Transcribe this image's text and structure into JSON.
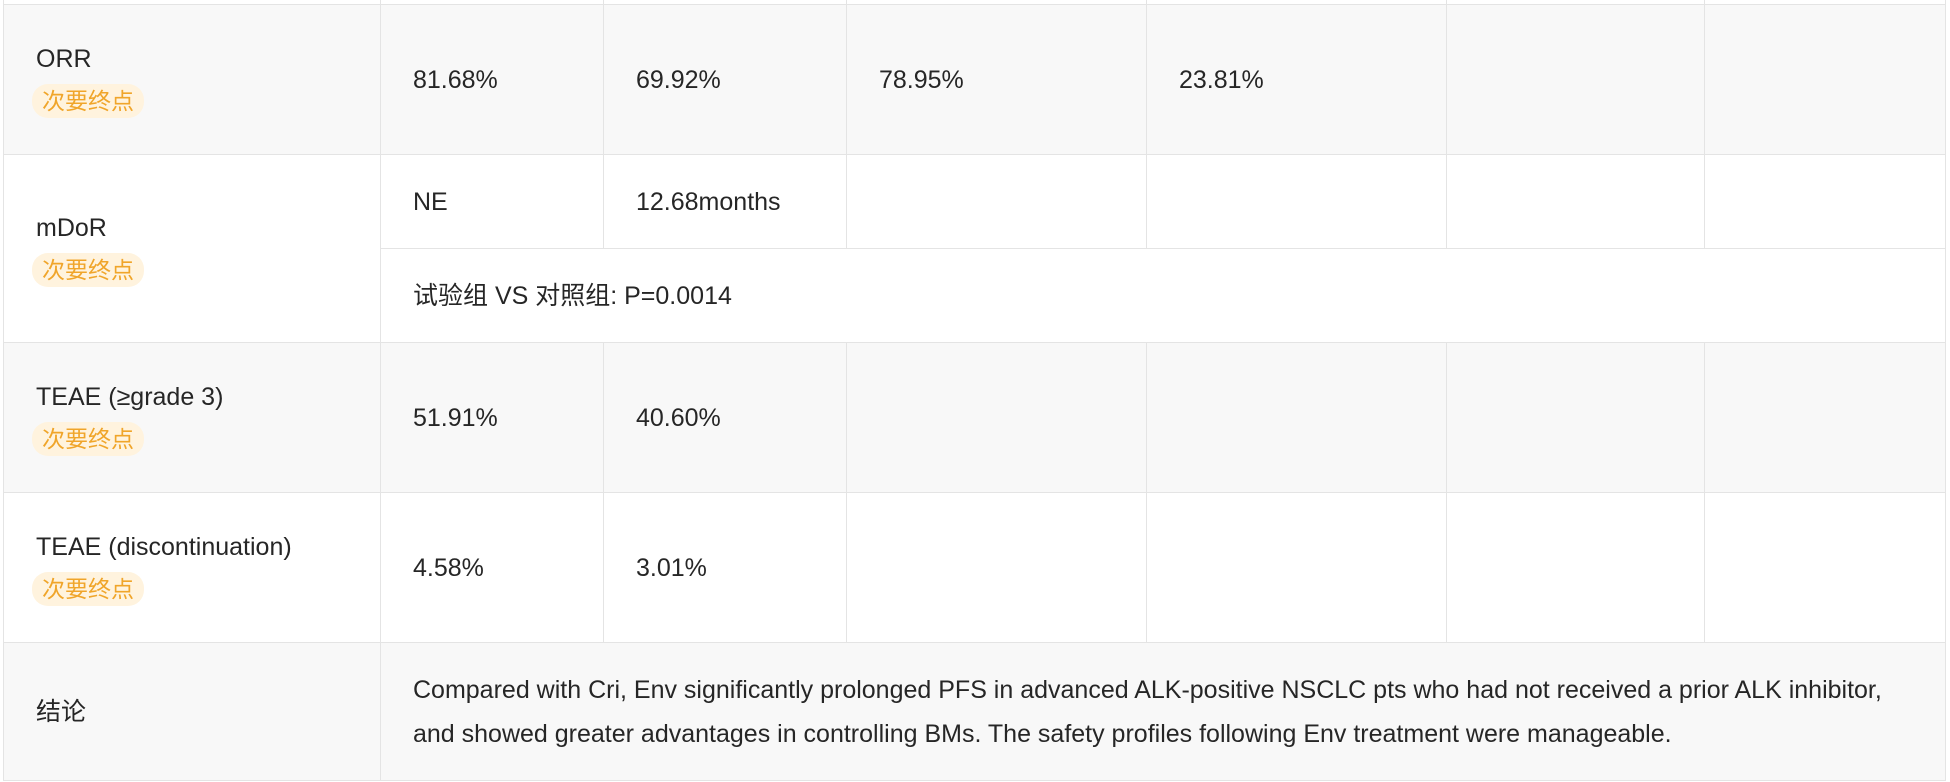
{
  "table": {
    "rows": [
      {
        "metric": "ORR",
        "badge": "次要终点",
        "values": [
          "81.68%",
          "69.92%",
          "78.95%",
          "23.81%",
          "",
          ""
        ]
      },
      {
        "metric": "mDoR",
        "badge": "次要终点",
        "values": [
          "NE",
          "12.68months",
          "",
          "",
          "",
          ""
        ],
        "note": "试验组 VS 对照组: P=0.0014"
      },
      {
        "metric": "TEAE (≥grade 3)",
        "badge": "次要终点",
        "values": [
          "51.91%",
          "40.60%",
          "",
          "",
          "",
          ""
        ]
      },
      {
        "metric": "TEAE (discontinuation)",
        "badge": "次要终点",
        "values": [
          "4.58%",
          "3.01%",
          "",
          "",
          "",
          ""
        ]
      }
    ],
    "conclusion": {
      "label": "结论",
      "text": "Compared with Cri, Env significantly prolonged PFS in advanced ALK-positive NSCLC pts who had not received a prior ALK inhibitor, and showed greater advantages in controlling BMs. The safety profiles following Env treatment were manageable."
    }
  },
  "colors": {
    "badge_bg": "#fff3de",
    "badge_text": "#f0a52a",
    "row_shade": "#f8f8f8",
    "border": "#e4e4e4"
  }
}
